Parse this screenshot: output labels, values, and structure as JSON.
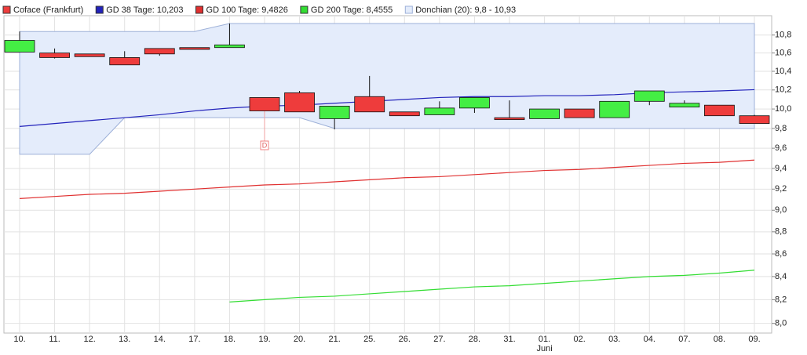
{
  "chart_data": {
    "type": "candlestick",
    "log": true,
    "grid": true,
    "categories": [
      "10.",
      "11.",
      "12.",
      "13.",
      "14.",
      "17.",
      "18.",
      "19.",
      "20.",
      "21.",
      "25.",
      "26.",
      "27.",
      "28.",
      "31.",
      "01.",
      "02.",
      "03.",
      "04.",
      "07.",
      "08.",
      "09."
    ],
    "x_group_labels": [
      {
        "label": "Juni",
        "at": "01."
      }
    ],
    "markers": [
      {
        "label": "D",
        "at": "19."
      }
    ],
    "ylim": [
      7.92,
      11.02
    ],
    "yticks": [
      {
        "value": 8.0,
        "label": "8,0"
      },
      {
        "value": 8.2,
        "label": "8,2"
      },
      {
        "value": 8.4,
        "label": "8,4"
      },
      {
        "value": 8.6,
        "label": "8,6"
      },
      {
        "value": 8.8,
        "label": "8,8"
      },
      {
        "value": 9.0,
        "label": "9,0"
      },
      {
        "value": 9.2,
        "label": "9,2"
      },
      {
        "value": 9.4,
        "label": "9,4"
      },
      {
        "value": 9.6,
        "label": "9,6"
      },
      {
        "value": 9.8,
        "label": "9,8"
      },
      {
        "value": 10.0,
        "label": "10,0"
      },
      {
        "value": 10.2,
        "label": "10,2"
      },
      {
        "value": 10.4,
        "label": "10,4"
      },
      {
        "value": 10.6,
        "label": "10,6"
      },
      {
        "value": 10.8,
        "label": "10,8"
      }
    ],
    "band": {
      "name": "Donchian (20): 9,8 - 10,93",
      "color": "#e4ecfb",
      "stroke": "#9db0d8",
      "upper": [
        10.84,
        10.84,
        10.84,
        10.84,
        10.84,
        10.84,
        10.93,
        10.93,
        10.93,
        10.93,
        10.93,
        10.93,
        10.93,
        10.93,
        10.93,
        10.93,
        10.93,
        10.93,
        10.93,
        10.93,
        10.93,
        10.93
      ],
      "lower": [
        9.54,
        9.54,
        9.54,
        9.91,
        9.91,
        9.91,
        9.91,
        9.91,
        9.91,
        9.8,
        9.8,
        9.8,
        9.8,
        9.8,
        9.8,
        9.8,
        9.8,
        9.8,
        9.8,
        9.8,
        9.8,
        9.8
      ]
    },
    "candles": {
      "name": "Coface (Frankfurt)",
      "up_color": "#44ee44",
      "down_color": "#ee3c3c",
      "open": [
        10.61,
        10.6,
        10.59,
        10.55,
        10.65,
        10.66,
        10.66,
        10.12,
        10.17,
        9.9,
        10.13,
        9.97,
        9.94,
        10.01,
        9.91,
        9.9,
        10.0,
        9.91,
        10.08,
        10.02,
        10.04,
        9.93
      ],
      "high": [
        10.84,
        10.65,
        10.59,
        10.62,
        10.65,
        10.66,
        10.93,
        10.12,
        10.19,
        10.03,
        10.35,
        9.97,
        10.08,
        10.12,
        10.09,
        10.0,
        10.0,
        10.08,
        10.19,
        10.09,
        10.04,
        9.94
      ],
      "low": [
        10.61,
        10.54,
        10.56,
        10.47,
        10.57,
        10.64,
        10.66,
        9.98,
        9.97,
        9.79,
        9.97,
        9.93,
        9.94,
        9.96,
        9.89,
        9.9,
        9.91,
        9.91,
        10.04,
        10.02,
        9.93,
        9.85
      ],
      "close": [
        10.74,
        10.55,
        10.56,
        10.47,
        10.59,
        10.64,
        10.69,
        9.98,
        9.97,
        10.03,
        9.97,
        9.93,
        10.01,
        10.12,
        9.89,
        10.0,
        9.91,
        10.08,
        10.19,
        10.06,
        9.93,
        9.85
      ]
    },
    "series": [
      {
        "name": "GD 38 Tage: 10,203",
        "color": "#2222bb",
        "values": [
          9.82,
          9.85,
          9.88,
          9.91,
          9.94,
          9.98,
          10.01,
          10.03,
          10.04,
          10.06,
          10.08,
          10.1,
          10.12,
          10.13,
          10.13,
          10.14,
          10.14,
          10.15,
          10.17,
          10.18,
          10.19,
          10.203
        ]
      },
      {
        "name": "GD 100 Tage: 9,4826",
        "color": "#e03030",
        "values": [
          9.11,
          9.13,
          9.15,
          9.16,
          9.18,
          9.2,
          9.22,
          9.24,
          9.25,
          9.27,
          9.29,
          9.31,
          9.32,
          9.34,
          9.36,
          9.38,
          9.39,
          9.41,
          9.43,
          9.45,
          9.46,
          9.4826
        ]
      },
      {
        "name": "GD 200 Tage: 8,4555",
        "color": "#33dd33",
        "values": [
          null,
          null,
          null,
          null,
          null,
          null,
          8.18,
          8.2,
          8.22,
          8.23,
          8.25,
          8.27,
          8.29,
          8.31,
          8.32,
          8.34,
          8.36,
          8.38,
          8.4,
          8.41,
          8.43,
          8.4555
        ]
      }
    ]
  }
}
